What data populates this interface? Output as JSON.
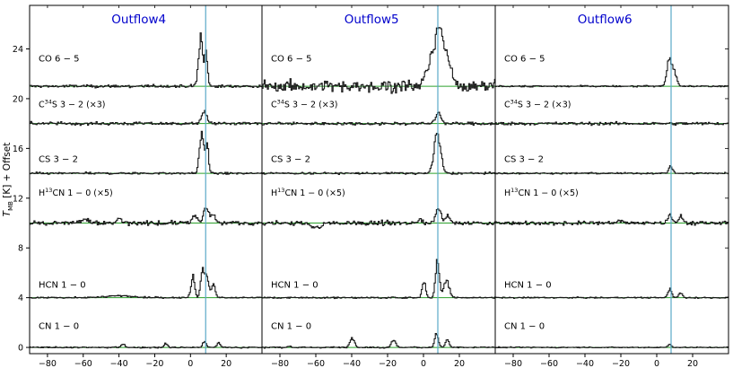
{
  "chart_data": {
    "type": "line",
    "ylabel_main": "T",
    "ylabel_sub": "MB",
    "ylabel_rest": " [K] + Offset",
    "xlim": [
      -90,
      40
    ],
    "ylim": [
      -0.5,
      27.5
    ],
    "xticks": [
      -80,
      -60,
      -40,
      -20,
      0,
      20
    ],
    "yticks": [
      0,
      4,
      8,
      12,
      16,
      20,
      24
    ],
    "colors": {
      "spectrum": "#1a1a1a",
      "baseline": "#2ca02c",
      "velocity_line": "#5aa9c8",
      "title": "#0000cc"
    },
    "lines": [
      {
        "name": "CO 6-5",
        "label_main": "CO  6 − 5",
        "offset": 21,
        "label_y": 23.0
      },
      {
        "name": "C34S 3-2",
        "label_pre": "C",
        "label_sup": "34",
        "label_post": "S  3 − 2 (×3)",
        "offset": 18,
        "label_y": 19.3
      },
      {
        "name": "CS 3-2",
        "label_main": "CS  3 − 2",
        "offset": 14,
        "label_y": 14.9
      },
      {
        "name": "H13CN 1-0",
        "label_pre": "H",
        "label_sup": "13",
        "label_post": "CN  1 − 0 (×5)",
        "offset": 10,
        "label_y": 12.2
      },
      {
        "name": "HCN 1-0",
        "label_main": "HCN  1 − 0",
        "offset": 4,
        "label_y": 4.8
      },
      {
        "name": "CN 1-0",
        "label_main": "CN  1 − 0",
        "offset": 0,
        "label_y": 1.5
      }
    ],
    "panels": [
      {
        "title": "Outflow4",
        "vline": 8.5,
        "lines": [
          {
            "noise": 0.12,
            "peaks": [
              [
                5.5,
                1.2,
                4.0
              ],
              [
                8.5,
                0.8,
                2.5
              ]
            ]
          },
          {
            "noise": 0.12,
            "peaks": [
              [
                7.5,
                1.5,
                0.9
              ]
            ]
          },
          {
            "noise": 0.08,
            "peaks": [
              [
                6.0,
                1.2,
                3.2
              ],
              [
                9.0,
                0.8,
                2.3
              ]
            ]
          },
          {
            "noise": 0.18,
            "peaks": [
              [
                2.0,
                1.5,
                0.6
              ],
              [
                8.5,
                1.5,
                1.2
              ],
              [
                12.5,
                1.0,
                0.7
              ],
              [
                -40,
                1.5,
                0.3
              ],
              [
                -60,
                2.0,
                0.25
              ]
            ]
          },
          {
            "noise": 0.06,
            "peaks": [
              [
                1.0,
                1.0,
                1.7
              ],
              [
                6.5,
                1.0,
                2.3
              ],
              [
                9.0,
                1.0,
                1.8
              ],
              [
                12.5,
                1.0,
                1.2
              ],
              [
                -40,
                8.0,
                0.15
              ]
            ]
          },
          {
            "noise": 0.05,
            "peaks": [
              [
                -38,
                1.0,
                0.3
              ],
              [
                -14,
                1.0,
                0.3
              ],
              [
                7.5,
                1.0,
                0.5
              ],
              [
                15.5,
                1.0,
                0.35
              ]
            ]
          }
        ]
      },
      {
        "title": "Outflow5",
        "vline": 8.0,
        "lines": [
          {
            "noise": 0.45,
            "peaks": [
              [
                4.0,
                2.5,
                2.2
              ],
              [
                8.5,
                2.0,
                4.0
              ],
              [
                13.0,
                2.5,
                2.0
              ]
            ]
          },
          {
            "noise": 0.12,
            "peaks": [
              [
                8.0,
                1.5,
                0.9
              ]
            ]
          },
          {
            "noise": 0.08,
            "peaks": [
              [
                7.5,
                1.8,
                3.2
              ]
            ]
          },
          {
            "noise": 0.18,
            "peaks": [
              [
                -60,
                3.0,
                -0.35
              ],
              [
                8.0,
                1.5,
                1.3
              ],
              [
                13.5,
                1.0,
                0.7
              ],
              [
                -2.0,
                1.0,
                0.3
              ]
            ]
          },
          {
            "noise": 0.06,
            "peaks": [
              [
                0.0,
                1.0,
                1.2
              ],
              [
                7.5,
                1.0,
                3.3
              ],
              [
                12.5,
                1.5,
                1.4
              ]
            ]
          },
          {
            "noise": 0.05,
            "peaks": [
              [
                -40,
                1.2,
                0.8
              ],
              [
                -17,
                1.2,
                0.6
              ],
              [
                7.0,
                1.0,
                1.1
              ],
              [
                13.0,
                1.0,
                0.6
              ],
              [
                -75,
                1.0,
                0.1
              ]
            ]
          }
        ]
      },
      {
        "title": "Outflow6",
        "vline": 8.0,
        "lines": [
          {
            "noise": 0.06,
            "peaks": [
              [
                7.0,
                1.5,
                2.2
              ],
              [
                10.0,
                1.2,
                0.7
              ]
            ]
          },
          {
            "noise": 0.12,
            "peaks": []
          },
          {
            "noise": 0.06,
            "peaks": [
              [
                7.5,
                1.0,
                0.6
              ]
            ]
          },
          {
            "noise": 0.15,
            "peaks": [
              [
                7.0,
                1.2,
                0.7
              ],
              [
                13.0,
                1.2,
                0.5
              ],
              [
                -20,
                1.5,
                0.2
              ]
            ]
          },
          {
            "noise": 0.05,
            "peaks": [
              [
                7.0,
                1.0,
                0.7
              ],
              [
                13.0,
                1.0,
                0.4
              ]
            ]
          },
          {
            "noise": 0.04,
            "peaks": [
              [
                7.0,
                1.0,
                0.25
              ]
            ]
          }
        ]
      }
    ]
  }
}
